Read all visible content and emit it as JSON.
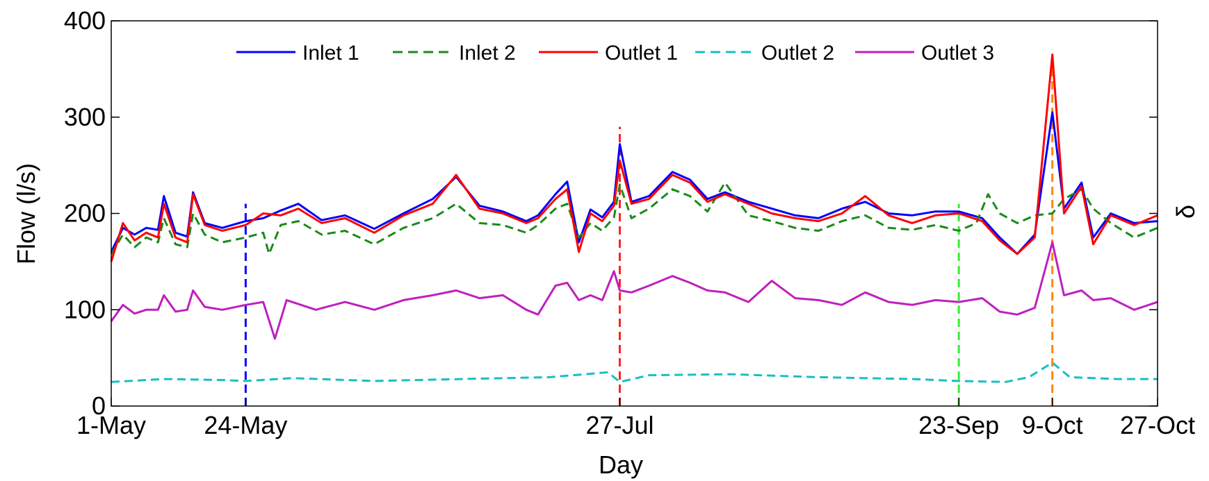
{
  "chart_data": {
    "type": "line",
    "title": "",
    "xlabel": "Day",
    "ylabel": "Flow (l/s)",
    "right_axis_label": "δ",
    "ylim": [
      0,
      400
    ],
    "xlim": [
      "2014-05-01",
      "2014-10-27"
    ],
    "yticks": [
      0,
      100,
      200,
      300,
      400
    ],
    "xticks": [
      {
        "date": "2014-05-01",
        "label": "1-May"
      },
      {
        "date": "2014-05-24",
        "label": "24-May"
      },
      {
        "date": "2014-07-27",
        "label": "27-Jul"
      },
      {
        "date": "2014-09-23",
        "label": "23-Sep"
      },
      {
        "date": "2014-10-09",
        "label": "9-Oct"
      },
      {
        "date": "2014-10-27",
        "label": "27-Oct"
      }
    ],
    "grid": false,
    "legend_position": "top",
    "series": [
      {
        "name": "Inlet 1",
        "color": "#0000ff",
        "style": "solid",
        "points": [
          [
            "2014-05-01",
            160
          ],
          [
            "2014-05-03",
            185
          ],
          [
            "2014-05-05",
            178
          ],
          [
            "2014-05-07",
            185
          ],
          [
            "2014-05-09",
            183
          ],
          [
            "2014-05-10",
            218
          ],
          [
            "2014-05-12",
            180
          ],
          [
            "2014-05-14",
            176
          ],
          [
            "2014-05-15",
            222
          ],
          [
            "2014-05-17",
            190
          ],
          [
            "2014-05-20",
            185
          ],
          [
            "2014-05-24",
            192
          ],
          [
            "2014-05-27",
            195
          ],
          [
            "2014-05-30",
            203
          ],
          [
            "2014-06-02",
            210
          ],
          [
            "2014-06-06",
            193
          ],
          [
            "2014-06-10",
            198
          ],
          [
            "2014-06-15",
            184
          ],
          [
            "2014-06-20",
            200
          ],
          [
            "2014-06-25",
            215
          ],
          [
            "2014-06-29",
            238
          ],
          [
            "2014-07-03",
            208
          ],
          [
            "2014-07-07",
            202
          ],
          [
            "2014-07-11",
            192
          ],
          [
            "2014-07-13",
            198
          ],
          [
            "2014-07-16",
            220
          ],
          [
            "2014-07-18",
            233
          ],
          [
            "2014-07-20",
            170
          ],
          [
            "2014-07-22",
            204
          ],
          [
            "2014-07-24",
            196
          ],
          [
            "2014-07-26",
            212
          ],
          [
            "2014-07-27",
            272
          ],
          [
            "2014-07-29",
            212
          ],
          [
            "2014-08-01",
            218
          ],
          [
            "2014-08-05",
            243
          ],
          [
            "2014-08-08",
            235
          ],
          [
            "2014-08-11",
            215
          ],
          [
            "2014-08-14",
            222
          ],
          [
            "2014-08-18",
            212
          ],
          [
            "2014-08-22",
            205
          ],
          [
            "2014-08-26",
            198
          ],
          [
            "2014-08-30",
            195
          ],
          [
            "2014-09-03",
            205
          ],
          [
            "2014-09-07",
            212
          ],
          [
            "2014-09-11",
            200
          ],
          [
            "2014-09-15",
            198
          ],
          [
            "2014-09-19",
            202
          ],
          [
            "2014-09-23",
            202
          ],
          [
            "2014-09-27",
            195
          ],
          [
            "2014-09-30",
            175
          ],
          [
            "2014-10-03",
            158
          ],
          [
            "2014-10-06",
            178
          ],
          [
            "2014-10-09",
            305
          ],
          [
            "2014-10-11",
            205
          ],
          [
            "2014-10-14",
            232
          ],
          [
            "2014-10-16",
            175
          ],
          [
            "2014-10-19",
            200
          ],
          [
            "2014-10-23",
            190
          ],
          [
            "2014-10-27",
            192
          ]
        ]
      },
      {
        "name": "Inlet 2",
        "color": "#1a8a1a",
        "style": "dashed",
        "points": [
          [
            "2014-05-01",
            158
          ],
          [
            "2014-05-03",
            178
          ],
          [
            "2014-05-05",
            165
          ],
          [
            "2014-05-07",
            175
          ],
          [
            "2014-05-09",
            170
          ],
          [
            "2014-05-10",
            195
          ],
          [
            "2014-05-12",
            168
          ],
          [
            "2014-05-14",
            165
          ],
          [
            "2014-05-15",
            200
          ],
          [
            "2014-05-17",
            178
          ],
          [
            "2014-05-20",
            170
          ],
          [
            "2014-05-24",
            175
          ],
          [
            "2014-05-27",
            180
          ],
          [
            "2014-05-28",
            158
          ],
          [
            "2014-05-30",
            188
          ],
          [
            "2014-06-02",
            192
          ],
          [
            "2014-06-06",
            178
          ],
          [
            "2014-06-10",
            182
          ],
          [
            "2014-06-15",
            168
          ],
          [
            "2014-06-20",
            185
          ],
          [
            "2014-06-25",
            195
          ],
          [
            "2014-06-29",
            210
          ],
          [
            "2014-07-03",
            190
          ],
          [
            "2014-07-07",
            188
          ],
          [
            "2014-07-11",
            180
          ],
          [
            "2014-07-13",
            188
          ],
          [
            "2014-07-16",
            205
          ],
          [
            "2014-07-18",
            210
          ],
          [
            "2014-07-20",
            175
          ],
          [
            "2014-07-22",
            190
          ],
          [
            "2014-07-24",
            182
          ],
          [
            "2014-07-26",
            196
          ],
          [
            "2014-07-27",
            230
          ],
          [
            "2014-07-29",
            195
          ],
          [
            "2014-08-01",
            205
          ],
          [
            "2014-08-05",
            225
          ],
          [
            "2014-08-08",
            218
          ],
          [
            "2014-08-11",
            202
          ],
          [
            "2014-08-14",
            232
          ],
          [
            "2014-08-18",
            198
          ],
          [
            "2014-08-22",
            192
          ],
          [
            "2014-08-26",
            185
          ],
          [
            "2014-08-30",
            182
          ],
          [
            "2014-09-03",
            192
          ],
          [
            "2014-09-07",
            198
          ],
          [
            "2014-09-11",
            185
          ],
          [
            "2014-09-15",
            183
          ],
          [
            "2014-09-19",
            188
          ],
          [
            "2014-09-23",
            182
          ],
          [
            "2014-09-26",
            190
          ],
          [
            "2014-09-28",
            220
          ],
          [
            "2014-09-30",
            200
          ],
          [
            "2014-10-03",
            190
          ],
          [
            "2014-10-06",
            198
          ],
          [
            "2014-10-09",
            200
          ],
          [
            "2014-10-11",
            215
          ],
          [
            "2014-10-14",
            225
          ],
          [
            "2014-10-16",
            205
          ],
          [
            "2014-10-19",
            190
          ],
          [
            "2014-10-23",
            175
          ],
          [
            "2014-10-27",
            185
          ]
        ]
      },
      {
        "name": "Outlet 1",
        "color": "#ff0000",
        "style": "solid",
        "points": [
          [
            "2014-05-01",
            150
          ],
          [
            "2014-05-03",
            190
          ],
          [
            "2014-05-05",
            172
          ],
          [
            "2014-05-07",
            180
          ],
          [
            "2014-05-09",
            175
          ],
          [
            "2014-05-10",
            210
          ],
          [
            "2014-05-12",
            175
          ],
          [
            "2014-05-14",
            170
          ],
          [
            "2014-05-15",
            220
          ],
          [
            "2014-05-17",
            188
          ],
          [
            "2014-05-20",
            182
          ],
          [
            "2014-05-24",
            188
          ],
          [
            "2014-05-27",
            200
          ],
          [
            "2014-05-30",
            198
          ],
          [
            "2014-06-02",
            205
          ],
          [
            "2014-06-06",
            190
          ],
          [
            "2014-06-10",
            195
          ],
          [
            "2014-06-15",
            180
          ],
          [
            "2014-06-20",
            198
          ],
          [
            "2014-06-25",
            210
          ],
          [
            "2014-06-29",
            240
          ],
          [
            "2014-07-03",
            205
          ],
          [
            "2014-07-07",
            200
          ],
          [
            "2014-07-11",
            190
          ],
          [
            "2014-07-13",
            195
          ],
          [
            "2014-07-16",
            215
          ],
          [
            "2014-07-18",
            225
          ],
          [
            "2014-07-20",
            160
          ],
          [
            "2014-07-22",
            200
          ],
          [
            "2014-07-24",
            192
          ],
          [
            "2014-07-26",
            208
          ],
          [
            "2014-07-27",
            255
          ],
          [
            "2014-07-29",
            210
          ],
          [
            "2014-08-01",
            215
          ],
          [
            "2014-08-05",
            240
          ],
          [
            "2014-08-08",
            232
          ],
          [
            "2014-08-11",
            212
          ],
          [
            "2014-08-14",
            220
          ],
          [
            "2014-08-18",
            210
          ],
          [
            "2014-08-22",
            200
          ],
          [
            "2014-08-26",
            195
          ],
          [
            "2014-08-30",
            192
          ],
          [
            "2014-09-03",
            200
          ],
          [
            "2014-09-07",
            218
          ],
          [
            "2014-09-11",
            198
          ],
          [
            "2014-09-15",
            190
          ],
          [
            "2014-09-19",
            198
          ],
          [
            "2014-09-23",
            200
          ],
          [
            "2014-09-27",
            192
          ],
          [
            "2014-09-30",
            172
          ],
          [
            "2014-10-03",
            158
          ],
          [
            "2014-10-06",
            175
          ],
          [
            "2014-10-09",
            365
          ],
          [
            "2014-10-11",
            200
          ],
          [
            "2014-10-14",
            228
          ],
          [
            "2014-10-16",
            168
          ],
          [
            "2014-10-19",
            198
          ],
          [
            "2014-10-23",
            188
          ],
          [
            "2014-10-27",
            198
          ]
        ]
      },
      {
        "name": "Outlet 2",
        "color": "#17bfc4",
        "style": "dashed",
        "points": [
          [
            "2014-05-01",
            25
          ],
          [
            "2014-05-10",
            28
          ],
          [
            "2014-05-20",
            27
          ],
          [
            "2014-05-24",
            26
          ],
          [
            "2014-06-01",
            29
          ],
          [
            "2014-06-15",
            26
          ],
          [
            "2014-06-30",
            28
          ],
          [
            "2014-07-15",
            30
          ],
          [
            "2014-07-25",
            35
          ],
          [
            "2014-07-27",
            25
          ],
          [
            "2014-08-01",
            32
          ],
          [
            "2014-08-15",
            33
          ],
          [
            "2014-08-30",
            30
          ],
          [
            "2014-09-15",
            28
          ],
          [
            "2014-09-23",
            26
          ],
          [
            "2014-10-01",
            25
          ],
          [
            "2014-10-05",
            30
          ],
          [
            "2014-10-09",
            45
          ],
          [
            "2014-10-12",
            30
          ],
          [
            "2014-10-20",
            28
          ],
          [
            "2014-10-27",
            28
          ]
        ]
      },
      {
        "name": "Outlet 3",
        "color": "#bf1fbf",
        "style": "solid",
        "points": [
          [
            "2014-05-01",
            88
          ],
          [
            "2014-05-03",
            105
          ],
          [
            "2014-05-05",
            96
          ],
          [
            "2014-05-07",
            100
          ],
          [
            "2014-05-09",
            100
          ],
          [
            "2014-05-10",
            115
          ],
          [
            "2014-05-12",
            98
          ],
          [
            "2014-05-14",
            100
          ],
          [
            "2014-05-15",
            120
          ],
          [
            "2014-05-17",
            103
          ],
          [
            "2014-05-20",
            100
          ],
          [
            "2014-05-24",
            105
          ],
          [
            "2014-05-27",
            108
          ],
          [
            "2014-05-29",
            70
          ],
          [
            "2014-05-31",
            110
          ],
          [
            "2014-06-05",
            100
          ],
          [
            "2014-06-10",
            108
          ],
          [
            "2014-06-15",
            100
          ],
          [
            "2014-06-20",
            110
          ],
          [
            "2014-06-25",
            115
          ],
          [
            "2014-06-29",
            120
          ],
          [
            "2014-07-03",
            112
          ],
          [
            "2014-07-07",
            115
          ],
          [
            "2014-07-11",
            100
          ],
          [
            "2014-07-13",
            95
          ],
          [
            "2014-07-16",
            125
          ],
          [
            "2014-07-18",
            128
          ],
          [
            "2014-07-20",
            110
          ],
          [
            "2014-07-22",
            115
          ],
          [
            "2014-07-24",
            110
          ],
          [
            "2014-07-26",
            140
          ],
          [
            "2014-07-27",
            120
          ],
          [
            "2014-07-29",
            118
          ],
          [
            "2014-08-01",
            125
          ],
          [
            "2014-08-05",
            135
          ],
          [
            "2014-08-08",
            128
          ],
          [
            "2014-08-11",
            120
          ],
          [
            "2014-08-14",
            118
          ],
          [
            "2014-08-18",
            108
          ],
          [
            "2014-08-22",
            130
          ],
          [
            "2014-08-26",
            112
          ],
          [
            "2014-08-30",
            110
          ],
          [
            "2014-09-03",
            105
          ],
          [
            "2014-09-07",
            118
          ],
          [
            "2014-09-11",
            108
          ],
          [
            "2014-09-15",
            105
          ],
          [
            "2014-09-19",
            110
          ],
          [
            "2014-09-23",
            108
          ],
          [
            "2014-09-27",
            112
          ],
          [
            "2014-09-30",
            98
          ],
          [
            "2014-10-03",
            95
          ],
          [
            "2014-10-06",
            102
          ],
          [
            "2014-10-09",
            170
          ],
          [
            "2014-10-11",
            115
          ],
          [
            "2014-10-14",
            120
          ],
          [
            "2014-10-16",
            110
          ],
          [
            "2014-10-19",
            112
          ],
          [
            "2014-10-23",
            100
          ],
          [
            "2014-10-27",
            108
          ]
        ]
      }
    ],
    "vertical_markers": [
      {
        "date": "2014-05-24",
        "color": "#0000ff",
        "top": 210
      },
      {
        "date": "2014-07-27",
        "color": "#ff2222",
        "top": 290
      },
      {
        "date": "2014-09-23",
        "color": "#33ee33",
        "top": 210
      },
      {
        "date": "2014-10-09",
        "color": "#ff8800",
        "top": 370
      }
    ]
  }
}
